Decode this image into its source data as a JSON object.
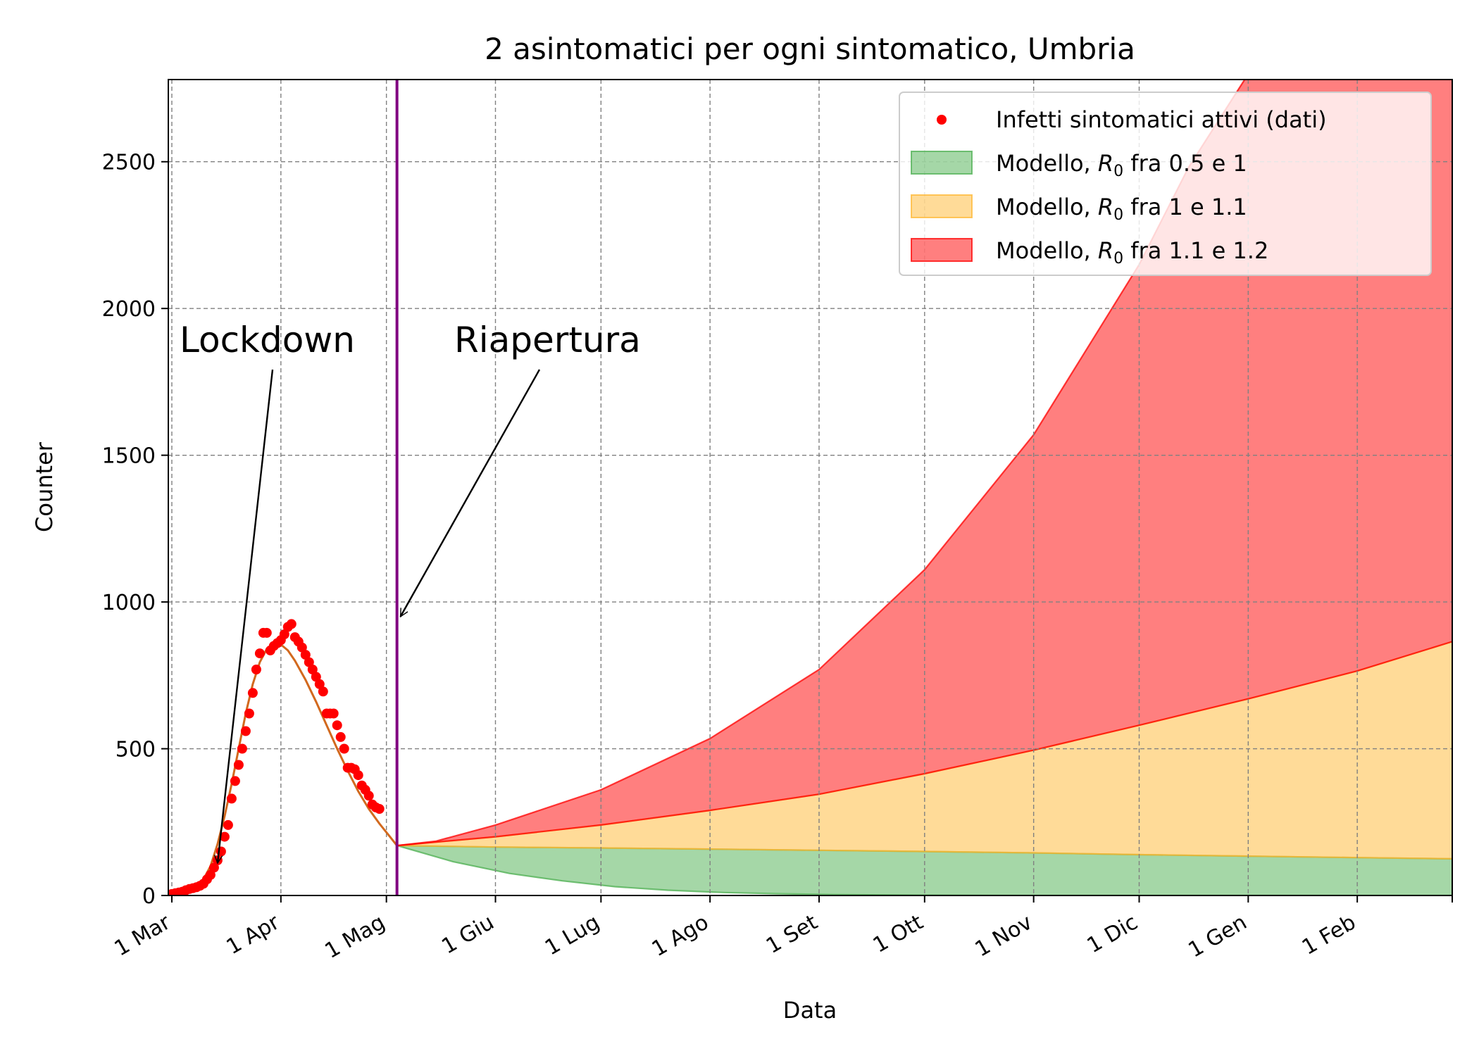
{
  "chart_data": {
    "type": "line",
    "title": "2 asintomatici per ogni sintomatico, Umbria",
    "xlabel": "Data",
    "ylabel": "Counter",
    "ylim": [
      0,
      2780
    ],
    "xlim": [
      "2020-02-29",
      "2021-02-28"
    ],
    "y_ticks": [
      0,
      500,
      1000,
      1500,
      2000,
      2500
    ],
    "x_ticks": [
      {
        "date": "2020-03-01",
        "label": "1 Mar"
      },
      {
        "date": "2020-04-01",
        "label": "1 Apr"
      },
      {
        "date": "2020-05-01",
        "label": "1 Mag"
      },
      {
        "date": "2020-06-01",
        "label": "1 Giu"
      },
      {
        "date": "2020-07-01",
        "label": "1 Lug"
      },
      {
        "date": "2020-08-01",
        "label": "1 Ago"
      },
      {
        "date": "2020-09-01",
        "label": "1 Set"
      },
      {
        "date": "2020-10-01",
        "label": "1 Ott"
      },
      {
        "date": "2020-11-01",
        "label": "1 Nov"
      },
      {
        "date": "2020-12-01",
        "label": "1 Dic"
      },
      {
        "date": "2021-01-01",
        "label": "1 Gen"
      },
      {
        "date": "2021-02-01",
        "label": "1 Feb"
      }
    ],
    "grid": true,
    "legend_position": "top-right",
    "legend": [
      {
        "label": "Infetti sintomatici attivi (dati)",
        "kind": "dot",
        "color": "#ff0000"
      },
      {
        "label_prefix": "Modello, ",
        "label_var": "R",
        "label_sub": "0",
        "label_suffix": " fra 0.5 e 1",
        "kind": "patch",
        "color": "#4caf50"
      },
      {
        "label_prefix": "Modello, ",
        "label_var": "R",
        "label_sub": "0",
        "label_suffix": " fra 1 e 1.1",
        "kind": "patch",
        "color": "#ffb732"
      },
      {
        "label_prefix": "Modello, ",
        "label_var": "R",
        "label_sub": "0",
        "label_suffix": " fra 1.1 e 1.2",
        "kind": "patch",
        "color": "#ff0000"
      }
    ],
    "reopening_line": {
      "date": "2020-05-04",
      "color": "#800080"
    },
    "annotations": [
      {
        "text": "Lockdown",
        "point_date": "2020-03-14",
        "point_value": 110
      },
      {
        "text": "Riapertura",
        "point_date": "2020-05-05",
        "point_value": 950
      }
    ],
    "observed": {
      "name": "Infetti sintomatici attivi (dati)",
      "color": "#ff0000",
      "points": [
        [
          "2020-03-01",
          5
        ],
        [
          "2020-03-02",
          8
        ],
        [
          "2020-03-03",
          10
        ],
        [
          "2020-03-04",
          13
        ],
        [
          "2020-03-05",
          18
        ],
        [
          "2020-03-06",
          22
        ],
        [
          "2020-03-07",
          25
        ],
        [
          "2020-03-08",
          28
        ],
        [
          "2020-03-09",
          33
        ],
        [
          "2020-03-10",
          40
        ],
        [
          "2020-03-11",
          55
        ],
        [
          "2020-03-12",
          70
        ],
        [
          "2020-03-13",
          95
        ],
        [
          "2020-03-14",
          120
        ],
        [
          "2020-03-15",
          150
        ],
        [
          "2020-03-16",
          200
        ],
        [
          "2020-03-17",
          240
        ],
        [
          "2020-03-18",
          330
        ],
        [
          "2020-03-19",
          390
        ],
        [
          "2020-03-20",
          445
        ],
        [
          "2020-03-21",
          500
        ],
        [
          "2020-03-22",
          560
        ],
        [
          "2020-03-23",
          620
        ],
        [
          "2020-03-24",
          690
        ],
        [
          "2020-03-25",
          770
        ],
        [
          "2020-03-26",
          825
        ],
        [
          "2020-03-27",
          895
        ],
        [
          "2020-03-28",
          895
        ],
        [
          "2020-03-29",
          835
        ],
        [
          "2020-03-30",
          850
        ],
        [
          "2020-03-31",
          860
        ],
        [
          "2020-04-01",
          870
        ],
        [
          "2020-04-02",
          890
        ],
        [
          "2020-04-03",
          915
        ],
        [
          "2020-04-04",
          925
        ],
        [
          "2020-04-05",
          880
        ],
        [
          "2020-04-06",
          865
        ],
        [
          "2020-04-07",
          845
        ],
        [
          "2020-04-08",
          820
        ],
        [
          "2020-04-09",
          795
        ],
        [
          "2020-04-10",
          770
        ],
        [
          "2020-04-11",
          745
        ],
        [
          "2020-04-12",
          720
        ],
        [
          "2020-04-13",
          695
        ],
        [
          "2020-04-14",
          620
        ],
        [
          "2020-04-15",
          620
        ],
        [
          "2020-04-16",
          620
        ],
        [
          "2020-04-17",
          580
        ],
        [
          "2020-04-18",
          540
        ],
        [
          "2020-04-19",
          500
        ],
        [
          "2020-04-20",
          435
        ],
        [
          "2020-04-21",
          435
        ],
        [
          "2020-04-22",
          430
        ],
        [
          "2020-04-23",
          410
        ],
        [
          "2020-04-24",
          375
        ],
        [
          "2020-04-25",
          360
        ],
        [
          "2020-04-26",
          340
        ],
        [
          "2020-04-27",
          310
        ],
        [
          "2020-04-28",
          300
        ],
        [
          "2020-04-29",
          295
        ]
      ]
    },
    "fit_curve": {
      "color": "#d2691e",
      "points": [
        [
          "2020-03-01",
          5
        ],
        [
          "2020-03-05",
          12
        ],
        [
          "2020-03-08",
          30
        ],
        [
          "2020-03-10",
          55
        ],
        [
          "2020-03-12",
          100
        ],
        [
          "2020-03-14",
          175
        ],
        [
          "2020-03-16",
          270
        ],
        [
          "2020-03-18",
          380
        ],
        [
          "2020-03-20",
          500
        ],
        [
          "2020-03-22",
          620
        ],
        [
          "2020-03-24",
          720
        ],
        [
          "2020-03-26",
          795
        ],
        [
          "2020-03-28",
          840
        ],
        [
          "2020-03-30",
          858
        ],
        [
          "2020-04-01",
          855
        ],
        [
          "2020-04-03",
          835
        ],
        [
          "2020-04-05",
          800
        ],
        [
          "2020-04-08",
          735
        ],
        [
          "2020-04-11",
          660
        ],
        [
          "2020-04-14",
          580
        ],
        [
          "2020-04-17",
          500
        ],
        [
          "2020-04-20",
          425
        ],
        [
          "2020-04-23",
          355
        ],
        [
          "2020-04-26",
          295
        ],
        [
          "2020-04-29",
          245
        ],
        [
          "2020-05-02",
          200
        ],
        [
          "2020-05-04",
          170
        ]
      ]
    },
    "bands": [
      {
        "name": "Modello, R0 fra 0.5 e 1",
        "color": "#4caf50",
        "lower": [
          [
            "2020-05-04",
            170
          ],
          [
            "2020-05-20",
            115
          ],
          [
            "2020-06-05",
            75
          ],
          [
            "2020-06-20",
            50
          ],
          [
            "2020-07-05",
            30
          ],
          [
            "2020-07-20",
            18
          ],
          [
            "2020-08-05",
            10
          ],
          [
            "2020-08-20",
            6
          ],
          [
            "2020-09-05",
            3
          ],
          [
            "2020-10-01",
            1
          ],
          [
            "2020-11-01",
            0
          ],
          [
            "2021-02-28",
            0
          ]
        ],
        "upper": [
          [
            "2020-05-04",
            170
          ],
          [
            "2020-06-01",
            165
          ],
          [
            "2020-07-01",
            162
          ],
          [
            "2020-08-01",
            158
          ],
          [
            "2020-09-01",
            154
          ],
          [
            "2020-10-01",
            150
          ],
          [
            "2020-11-01",
            145
          ],
          [
            "2020-12-01",
            139
          ],
          [
            "2021-01-01",
            134
          ],
          [
            "2021-02-01",
            129
          ],
          [
            "2021-02-28",
            125
          ]
        ]
      },
      {
        "name": "Modello, R0 fra 1 e 1.1",
        "color": "#ffb732",
        "lower": [
          [
            "2020-05-04",
            170
          ],
          [
            "2020-06-01",
            165
          ],
          [
            "2020-07-01",
            162
          ],
          [
            "2020-08-01",
            158
          ],
          [
            "2020-09-01",
            154
          ],
          [
            "2020-10-01",
            150
          ],
          [
            "2020-11-01",
            145
          ],
          [
            "2020-12-01",
            139
          ],
          [
            "2021-01-01",
            134
          ],
          [
            "2021-02-01",
            129
          ],
          [
            "2021-02-28",
            125
          ]
        ],
        "upper": [
          [
            "2020-05-04",
            170
          ],
          [
            "2020-06-01",
            200
          ],
          [
            "2020-07-01",
            240
          ],
          [
            "2020-08-01",
            290
          ],
          [
            "2020-09-01",
            345
          ],
          [
            "2020-10-01",
            415
          ],
          [
            "2020-11-01",
            495
          ],
          [
            "2020-12-01",
            580
          ],
          [
            "2021-01-01",
            670
          ],
          [
            "2021-02-01",
            765
          ],
          [
            "2021-02-28",
            865
          ]
        ]
      },
      {
        "name": "Modello, R0 fra 1.1 e 1.2",
        "color": "#ff0000",
        "lower": [
          [
            "2020-05-04",
            170
          ],
          [
            "2020-06-01",
            200
          ],
          [
            "2020-07-01",
            240
          ],
          [
            "2020-08-01",
            290
          ],
          [
            "2020-09-01",
            345
          ],
          [
            "2020-10-01",
            415
          ],
          [
            "2020-11-01",
            495
          ],
          [
            "2020-12-01",
            580
          ],
          [
            "2021-01-01",
            670
          ],
          [
            "2021-02-01",
            765
          ],
          [
            "2021-02-28",
            865
          ]
        ],
        "upper": [
          [
            "2020-05-04",
            170
          ],
          [
            "2020-05-15",
            185
          ],
          [
            "2020-06-01",
            240
          ],
          [
            "2020-07-01",
            360
          ],
          [
            "2020-08-01",
            535
          ],
          [
            "2020-09-01",
            770
          ],
          [
            "2020-10-01",
            1110
          ],
          [
            "2020-11-01",
            1570
          ],
          [
            "2020-12-01",
            2150
          ],
          [
            "2020-12-15",
            2480
          ],
          [
            "2020-12-31",
            2780
          ],
          [
            "2021-02-28",
            2780
          ]
        ]
      }
    ]
  }
}
